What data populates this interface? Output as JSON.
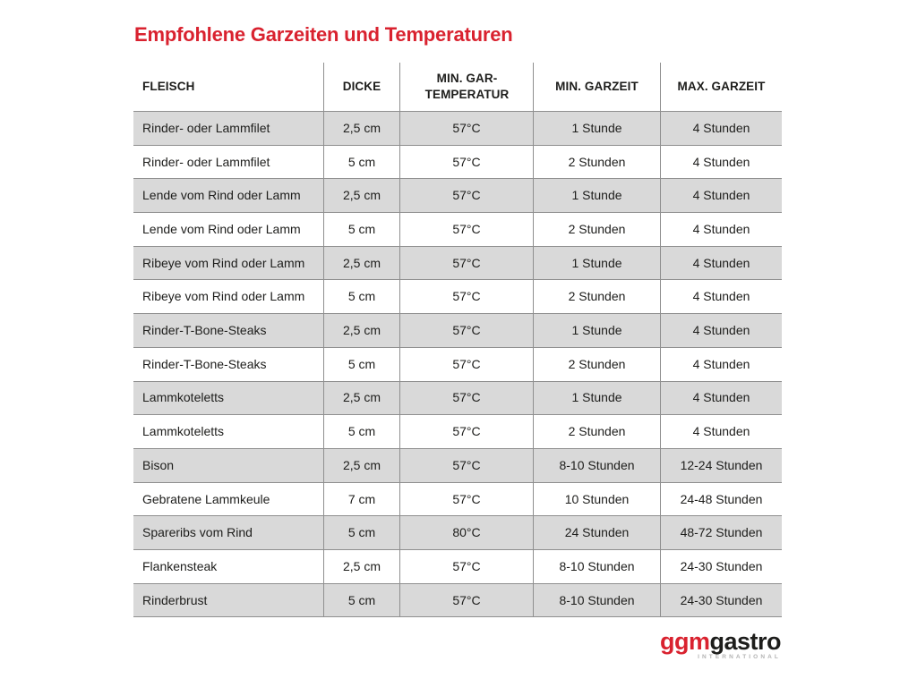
{
  "title": "Empfohlene Garzeiten und Temperaturen",
  "colors": {
    "title_red": "#d9222f",
    "row_alt_gray": "#d9d9d9",
    "border_gray": "#8f8f8f",
    "text": "#1d1d1b",
    "logo_red": "#d9222f",
    "logo_black": "#1d1d1b",
    "logo_sub_gray": "#b3b3b3"
  },
  "chart_data": {
    "type": "table",
    "title": "Empfohlene Garzeiten und Temperaturen",
    "columns": [
      {
        "key": "fleisch",
        "label": "FLEISCH"
      },
      {
        "key": "dicke",
        "label": "DICKE"
      },
      {
        "key": "min_gar_temperatur",
        "label": "MIN. GAR-TEMPERATUR"
      },
      {
        "key": "min_garzeit",
        "label": "MIN. GARZEIT"
      },
      {
        "key": "max_garzeit",
        "label": "MAX. GARZEIT"
      }
    ],
    "rows": [
      [
        "Rinder- oder Lammfilet",
        "2,5 cm",
        "57°C",
        "1 Stunde",
        "4 Stunden"
      ],
      [
        "Rinder- oder Lammfilet",
        "5 cm",
        "57°C",
        "2 Stunden",
        "4 Stunden"
      ],
      [
        "Lende vom Rind oder Lamm",
        "2,5 cm",
        "57°C",
        "1 Stunde",
        "4 Stunden"
      ],
      [
        "Lende vom Rind oder Lamm",
        "5 cm",
        "57°C",
        "2 Stunden",
        "4 Stunden"
      ],
      [
        "Ribeye vom Rind oder Lamm",
        "2,5 cm",
        "57°C",
        "1 Stunde",
        "4 Stunden"
      ],
      [
        "Ribeye vom Rind oder Lamm",
        "5 cm",
        "57°C",
        "2 Stunden",
        "4 Stunden"
      ],
      [
        "Rinder-T-Bone-Steaks",
        "2,5 cm",
        "57°C",
        "1 Stunde",
        "4 Stunden"
      ],
      [
        "Rinder-T-Bone-Steaks",
        "5 cm",
        "57°C",
        "2 Stunden",
        "4 Stunden"
      ],
      [
        "Lammkoteletts",
        "2,5 cm",
        "57°C",
        "1 Stunde",
        "4 Stunden"
      ],
      [
        "Lammkoteletts",
        "5 cm",
        "57°C",
        "2 Stunden",
        "4 Stunden"
      ],
      [
        "Bison",
        "2,5 cm",
        "57°C",
        "8-10 Stunden",
        "12-24 Stunden"
      ],
      [
        "Gebratene Lammkeule",
        "7 cm",
        "57°C",
        "10 Stunden",
        "24-48 Stunden"
      ],
      [
        "Spareribs vom Rind",
        "5 cm",
        "80°C",
        "24 Stunden",
        "48-72 Stunden"
      ],
      [
        "Flankensteak",
        "2,5 cm",
        "57°C",
        "8-10 Stunden",
        "24-30 Stunden"
      ],
      [
        "Rinderbrust",
        "5 cm",
        "57°C",
        "8-10 Stunden",
        "24-30 Stunden"
      ]
    ],
    "layout": {
      "striping": "odd rows gray, even rows white",
      "first_column_align": "left",
      "other_columns_align": "center"
    }
  },
  "logo": {
    "part1": "ggm",
    "part2": "gastro",
    "subtitle": "INTERNATIONAL"
  }
}
